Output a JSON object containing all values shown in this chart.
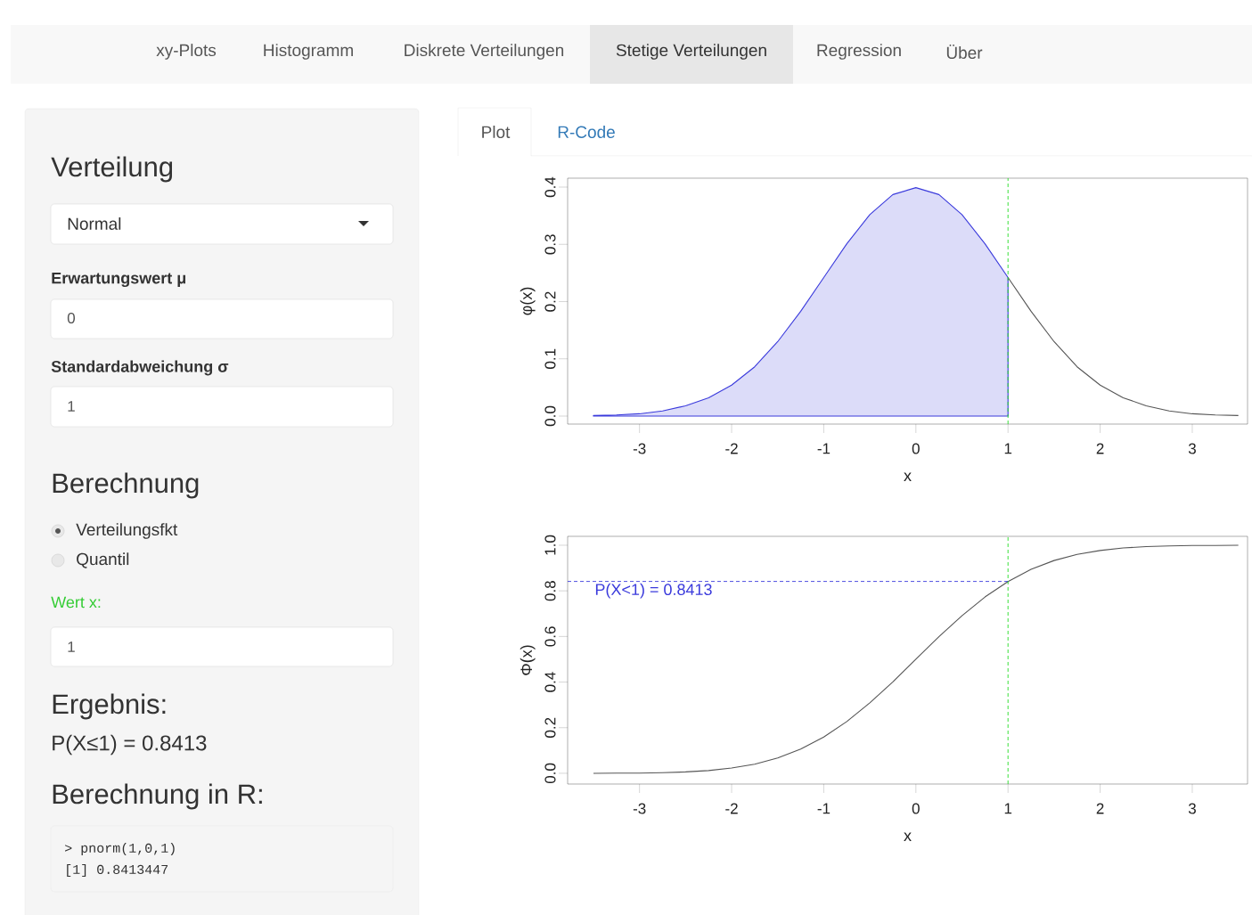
{
  "chart_data": [
    {
      "type": "other",
      "annotations": [
        "xy-Plots",
        "Histogramm",
        "Diskrete Verteilungen",
        "Stetige Verteilungen",
        "Regression",
        "Über",
        "Plot",
        "R-Code",
        "Verteilung",
        "Normal",
        "Erwartungswert μ",
        "0",
        "Standardabweichung σ",
        "1",
        "Berechnung",
        "Verteilungsfkt",
        "Quantil",
        "Wert x:",
        "1",
        "Ergebnis:",
        "P(X≤1) = 0.8413",
        "Berechnung in R:",
        "> pnorm(1,0,1)",
        "[1] 0.8413447"
      ]
    },
    {
      "type": "line",
      "xlabel": "x",
      "ylabel": "φ(x)",
      "xlim": [
        -3.78,
        3.6
      ],
      "ylim": [
        -0.014,
        0.4156
      ],
      "xticks": [
        -3,
        -2,
        -1,
        0,
        1,
        2,
        3
      ],
      "yticks": [
        {
          "value": 0,
          "label": "0.0"
        },
        {
          "value": 0.1,
          "label": "0.1"
        },
        {
          "value": 0.2,
          "label": "0.2"
        },
        {
          "value": 0.3,
          "label": "0.3"
        },
        {
          "value": 0.4,
          "label": "0.4"
        }
      ],
      "series": [
        {
          "type": "area",
          "color": "#3a3adc",
          "x": [
            -3.5,
            -3.25,
            -3,
            -2.75,
            -2.5,
            -2.25,
            -2,
            -1.75,
            -1.5,
            -1.25,
            -1,
            -0.75,
            -0.5,
            -0.25,
            0,
            0.25,
            0.5,
            0.75,
            1
          ],
          "values": [
            0.001,
            0.002,
            0.004,
            0.009,
            0.018,
            0.032,
            0.054,
            0.086,
            0.13,
            0.183,
            0.242,
            0.301,
            0.352,
            0.387,
            0.399,
            0.387,
            0.352,
            0.301,
            0.242
          ]
        },
        {
          "type": "line",
          "color": "#555555",
          "x": [
            1,
            1.25,
            1.5,
            1.75,
            2,
            2.25,
            2.5,
            2.75,
            3,
            3.25,
            3.5
          ],
          "values": [
            0.242,
            0.183,
            0.13,
            0.086,
            0.054,
            0.032,
            0.018,
            0.009,
            0.004,
            0.002,
            0.001
          ]
        }
      ],
      "ref_lines": [
        {
          "axis": "x",
          "value": 1,
          "color": "#22dd22",
          "line_style": "dashed"
        }
      ]
    },
    {
      "type": "line",
      "xlabel": "x",
      "ylabel": "Φ(x)",
      "xlim": [
        -3.78,
        3.6
      ],
      "ylim": [
        -0.047,
        1.039
      ],
      "xticks": [
        -3,
        -2,
        -1,
        0,
        1,
        2,
        3
      ],
      "yticks": [
        {
          "value": 0,
          "label": "0.0"
        },
        {
          "value": 0.2,
          "label": "0.2"
        },
        {
          "value": 0.4,
          "label": "0.4"
        },
        {
          "value": 0.6,
          "label": "0.6"
        },
        {
          "value": 0.8,
          "label": "0.8"
        },
        {
          "value": 1,
          "label": "1.0"
        }
      ],
      "series": [
        {
          "color": "#555555",
          "x": [
            -3.5,
            -3.25,
            -3,
            -2.75,
            -2.5,
            -2.25,
            -2,
            -1.75,
            -1.5,
            -1.25,
            -1,
            -0.75,
            -0.5,
            -0.25,
            0,
            0.25,
            0.5,
            0.75,
            1,
            1.25,
            1.5,
            1.75,
            2,
            2.25,
            2.5,
            2.75,
            3,
            3.25,
            3.5
          ],
          "values": [
            0.0,
            0.001,
            0.001,
            0.003,
            0.006,
            0.012,
            0.023,
            0.04,
            0.067,
            0.106,
            0.159,
            0.227,
            0.309,
            0.401,
            0.5,
            0.599,
            0.691,
            0.773,
            0.841,
            0.894,
            0.933,
            0.96,
            0.977,
            0.988,
            0.994,
            0.997,
            0.999,
            0.999,
            1.0
          ]
        }
      ],
      "ref_lines": [
        {
          "axis": "x",
          "value": 1,
          "color": "#22dd22",
          "line_style": "dashed"
        },
        {
          "axis": "y",
          "value": 0.8413,
          "color": "#3a3adc",
          "line_style": "dashed",
          "label": "P(X<1) = 0.8413"
        }
      ]
    }
  ]
}
